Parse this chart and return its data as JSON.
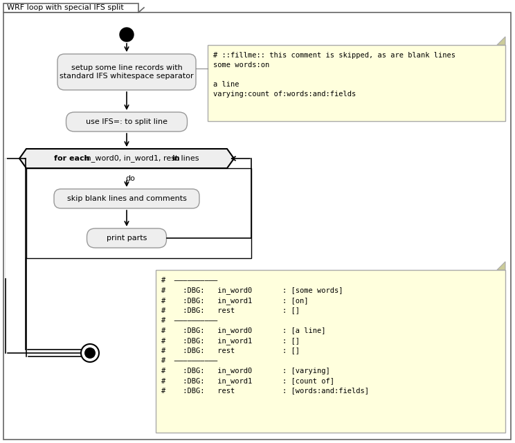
{
  "title": "WRF loop with special IFS split",
  "bg_color": "#ffffff",
  "note_bg": "#ffffdd",
  "note_border": "#aaaaaa",
  "box_bg": "#eeeeee",
  "box_border": "#999999",
  "text_color": "#000000",
  "start_fill": "#000000",
  "setup_text": "setup some line records with\nstandard IFS whitespace separator",
  "ifs_text": "use IFS=: to split line",
  "while_label_parts": [
    [
      "for each",
      true
    ],
    [
      " in_word0, in_word1, rest ",
      false
    ],
    [
      "in",
      true
    ],
    [
      " lines",
      false
    ]
  ],
  "do_text": "do",
  "skip_text": "skip blank lines and comments",
  "print_text": "print parts",
  "note_right_lines": [
    "# ::fillme:: this comment is skipped, as are blank lines",
    "some words:on",
    "",
    "a line",
    "varying:count of:words:and:fields"
  ],
  "float_note_lines": [
    "#  ——————————",
    "#    :DBG:   in_word0       : [some words]",
    "#    :DBG:   in_word1       : [on]",
    "#    :DBG:   rest           : []",
    "#  ——————————",
    "#    :DBG:   in_word0       : [a line]",
    "#    :DBG:   in_word1       : []",
    "#    :DBG:   rest           : []",
    "#  ——————————",
    "#    :DBG:   in_word0       : [varying]",
    "#    :DBG:   in_word1       : [count of]",
    "#    :DBG:   rest           : [words:and:fields]"
  ]
}
